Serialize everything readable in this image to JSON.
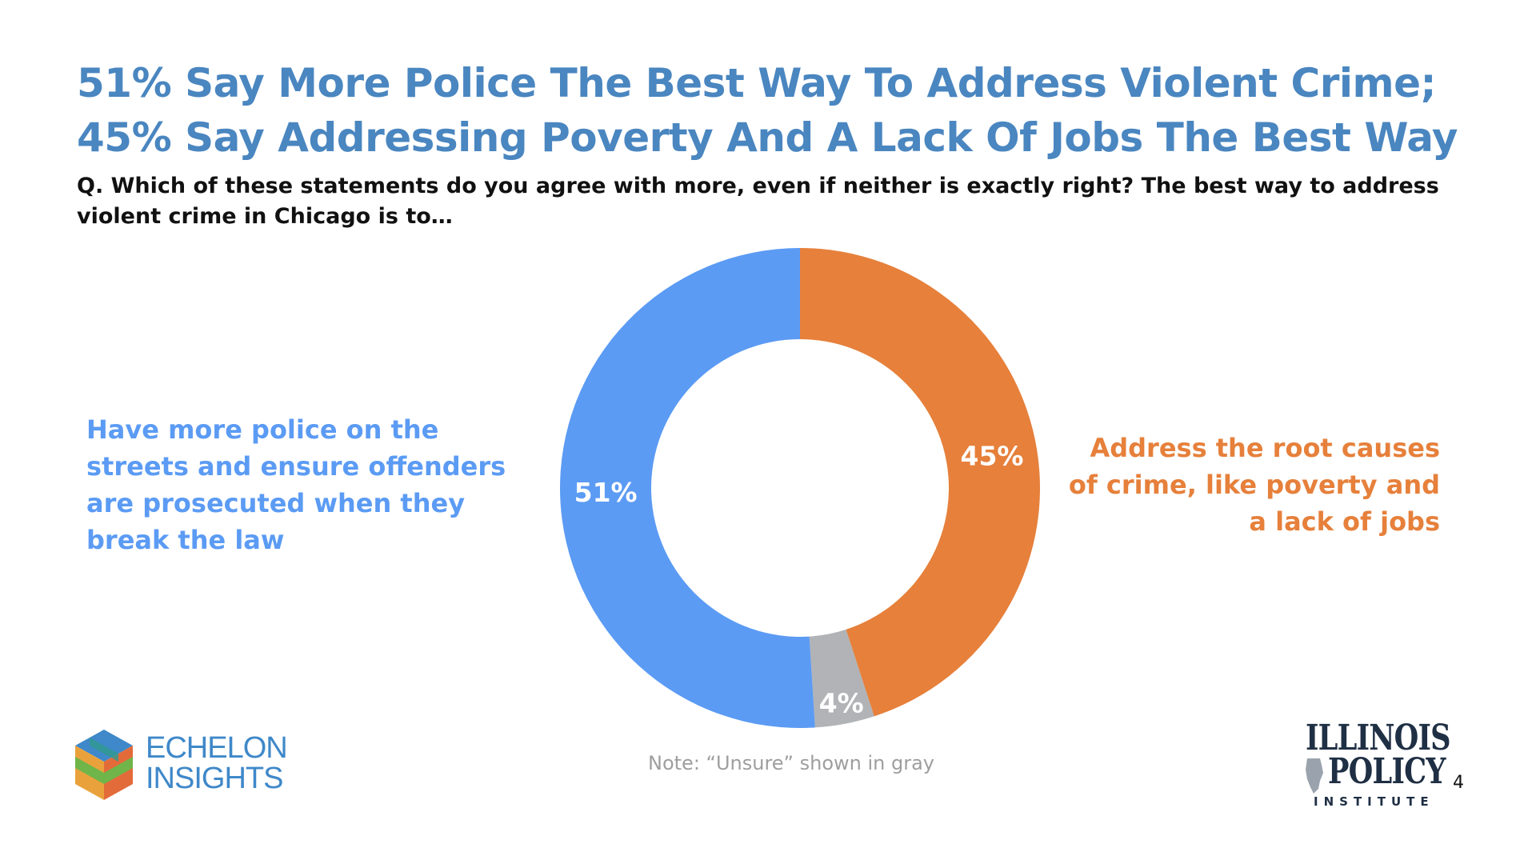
{
  "slide": {
    "title_line1": "51% Say More Police The Best Way To Address Violent Crime;",
    "title_line2": "45% Say Addressing Poverty And A Lack Of Jobs The Best Way",
    "question": "Q. Which of these statements do you agree with more, even if neither is exactly right? The best way to address violent crime in Chicago is to…",
    "label_left": "Have more police on the streets and ensure offenders are prosecuted when they break the law",
    "label_right": "Address the root causes of crime, like poverty and a lack of jobs",
    "note": "Note: “Unsure” shown in gray",
    "page_number": "4"
  },
  "logos": {
    "left_line1": "ECHELON",
    "left_line2": "INSIGHTS",
    "left_icon": "cube-icon",
    "right_line1": "ILLINOIS",
    "right_line2": "POLICY",
    "right_line3": "INSTITUTE"
  },
  "chart_data": {
    "type": "pie",
    "donut": true,
    "start": "top, clockwise",
    "slices": [
      {
        "label": "Address the root causes of crime, like poverty and a lack of jobs",
        "value": 45,
        "display": "45%",
        "color": "#e6803b"
      },
      {
        "label": "Unsure",
        "value": 4,
        "display": "4%",
        "color": "#b1b3b6"
      },
      {
        "label": "Have more police on the streets and ensure offenders are prosecuted when they break the law",
        "value": 51,
        "display": "51%",
        "color": "#5b9bf4"
      }
    ]
  }
}
